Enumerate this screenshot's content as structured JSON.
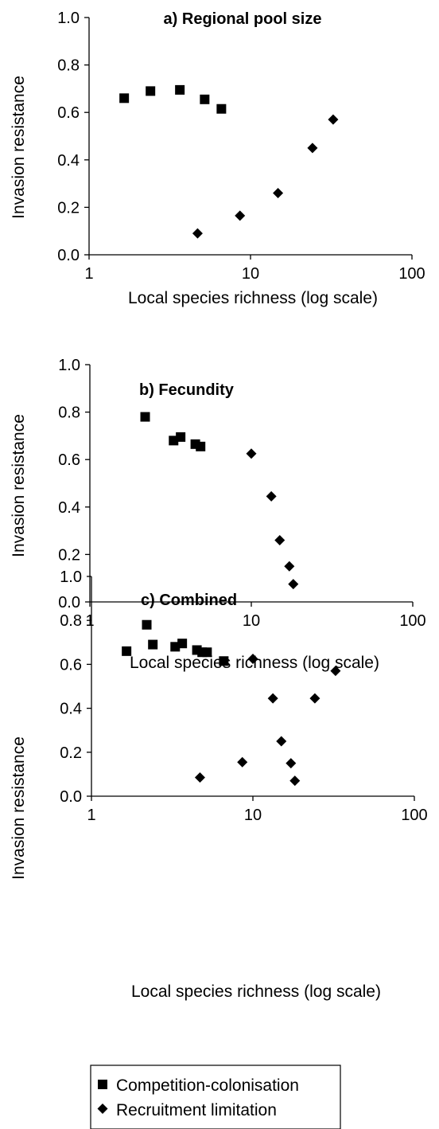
{
  "chart_data": [
    {
      "type": "scatter",
      "title": "a) Regional pool size",
      "xlabel": "Local species richness (log scale)",
      "ylabel": "Invasion resistance",
      "x_scale": "log",
      "xlim": [
        1,
        100
      ],
      "ylim": [
        0,
        1
      ],
      "x_ticks": [
        "1",
        "10",
        "100"
      ],
      "y_ticks": [
        "0.0",
        "0.2",
        "0.4",
        "0.6",
        "0.8",
        "1.0"
      ],
      "grid": false,
      "series": [
        {
          "name": "Competition-colonisation",
          "marker": "square",
          "points": [
            [
              1.65,
              0.66
            ],
            [
              2.4,
              0.69
            ],
            [
              3.65,
              0.695
            ],
            [
              5.2,
              0.655
            ],
            [
              6.6,
              0.615
            ]
          ]
        },
        {
          "name": "Recruitment limitation",
          "marker": "diamond",
          "points": [
            [
              4.7,
              0.09
            ],
            [
              8.6,
              0.165
            ],
            [
              14.8,
              0.26
            ],
            [
              24.2,
              0.45
            ],
            [
              32.5,
              0.57
            ]
          ]
        }
      ]
    },
    {
      "type": "scatter",
      "title": "b) Fecundity",
      "xlabel": "Local species richness (log scale)",
      "ylabel": "Invasion resistance",
      "x_scale": "log",
      "xlim": [
        1,
        100
      ],
      "ylim": [
        0,
        1
      ],
      "x_ticks": [
        "1",
        "10",
        "100"
      ],
      "y_ticks": [
        "0.0",
        "0.2",
        "0.4",
        "0.6",
        "0.8",
        "1.0"
      ],
      "grid": false,
      "series": [
        {
          "name": "Competition-colonisation",
          "marker": "square",
          "points": [
            [
              2.2,
              0.78
            ],
            [
              3.3,
              0.68
            ],
            [
              3.65,
              0.695
            ],
            [
              4.5,
              0.665
            ],
            [
              4.85,
              0.655
            ]
          ]
        },
        {
          "name": "Recruitment limitation",
          "marker": "diamond",
          "points": [
            [
              10.0,
              0.625
            ],
            [
              13.3,
              0.445
            ],
            [
              15.0,
              0.26
            ],
            [
              17.2,
              0.15
            ],
            [
              18.2,
              0.075
            ]
          ]
        }
      ]
    },
    {
      "type": "scatter",
      "title": "c) Combined",
      "xlabel": "Local species richness (log scale)",
      "ylabel": "Invasion resistance",
      "x_scale": "log",
      "xlim": [
        1,
        100
      ],
      "ylim": [
        0,
        1
      ],
      "x_ticks": [
        "1",
        "10",
        "100"
      ],
      "y_ticks": [
        "0.0",
        "0.2",
        "0.4",
        "0.6",
        "0.8",
        "1.0"
      ],
      "grid": false,
      "series": [
        {
          "name": "Competition-colonisation",
          "marker": "square",
          "points": [
            [
              1.65,
              0.66
            ],
            [
              2.2,
              0.78
            ],
            [
              2.4,
              0.69
            ],
            [
              3.3,
              0.68
            ],
            [
              3.65,
              0.695
            ],
            [
              4.5,
              0.665
            ],
            [
              4.85,
              0.655
            ],
            [
              5.2,
              0.655
            ],
            [
              6.6,
              0.615
            ]
          ]
        },
        {
          "name": "Recruitment limitation",
          "marker": "diamond",
          "points": [
            [
              4.7,
              0.085
            ],
            [
              8.6,
              0.155
            ],
            [
              10.0,
              0.625
            ],
            [
              13.3,
              0.445
            ],
            [
              15.0,
              0.25
            ],
            [
              17.2,
              0.15
            ],
            [
              18.2,
              0.07
            ],
            [
              24.2,
              0.445
            ],
            [
              32.5,
              0.57
            ]
          ]
        }
      ]
    }
  ],
  "legend": {
    "placement": "bottom",
    "items": [
      {
        "label": "Competition-colonisation",
        "marker": "square"
      },
      {
        "label": "Recruitment limitation",
        "marker": "diamond"
      }
    ]
  }
}
